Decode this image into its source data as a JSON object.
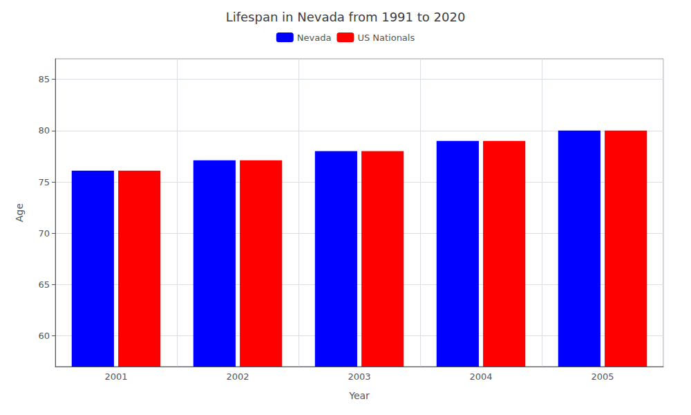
{
  "chart_data": {
    "type": "bar",
    "title": "Lifespan in Nevada from 1991 to 2020",
    "x_label": "Year",
    "y_label": "Age",
    "categories": [
      "2001",
      "2002",
      "2003",
      "2004",
      "2005"
    ],
    "series": [
      {
        "name": "Nevada",
        "color": "#0000ff",
        "values": [
          76.1,
          77.1,
          78.0,
          79.0,
          80.0
        ]
      },
      {
        "name": "US Nationals",
        "color": "#ff0000",
        "values": [
          76.1,
          77.1,
          78.0,
          79.0,
          80.0
        ]
      }
    ],
    "ylim": [
      57,
      87
    ],
    "yticks": [
      60,
      65,
      70,
      75,
      80,
      85
    ],
    "grid": true,
    "legend": "top"
  }
}
